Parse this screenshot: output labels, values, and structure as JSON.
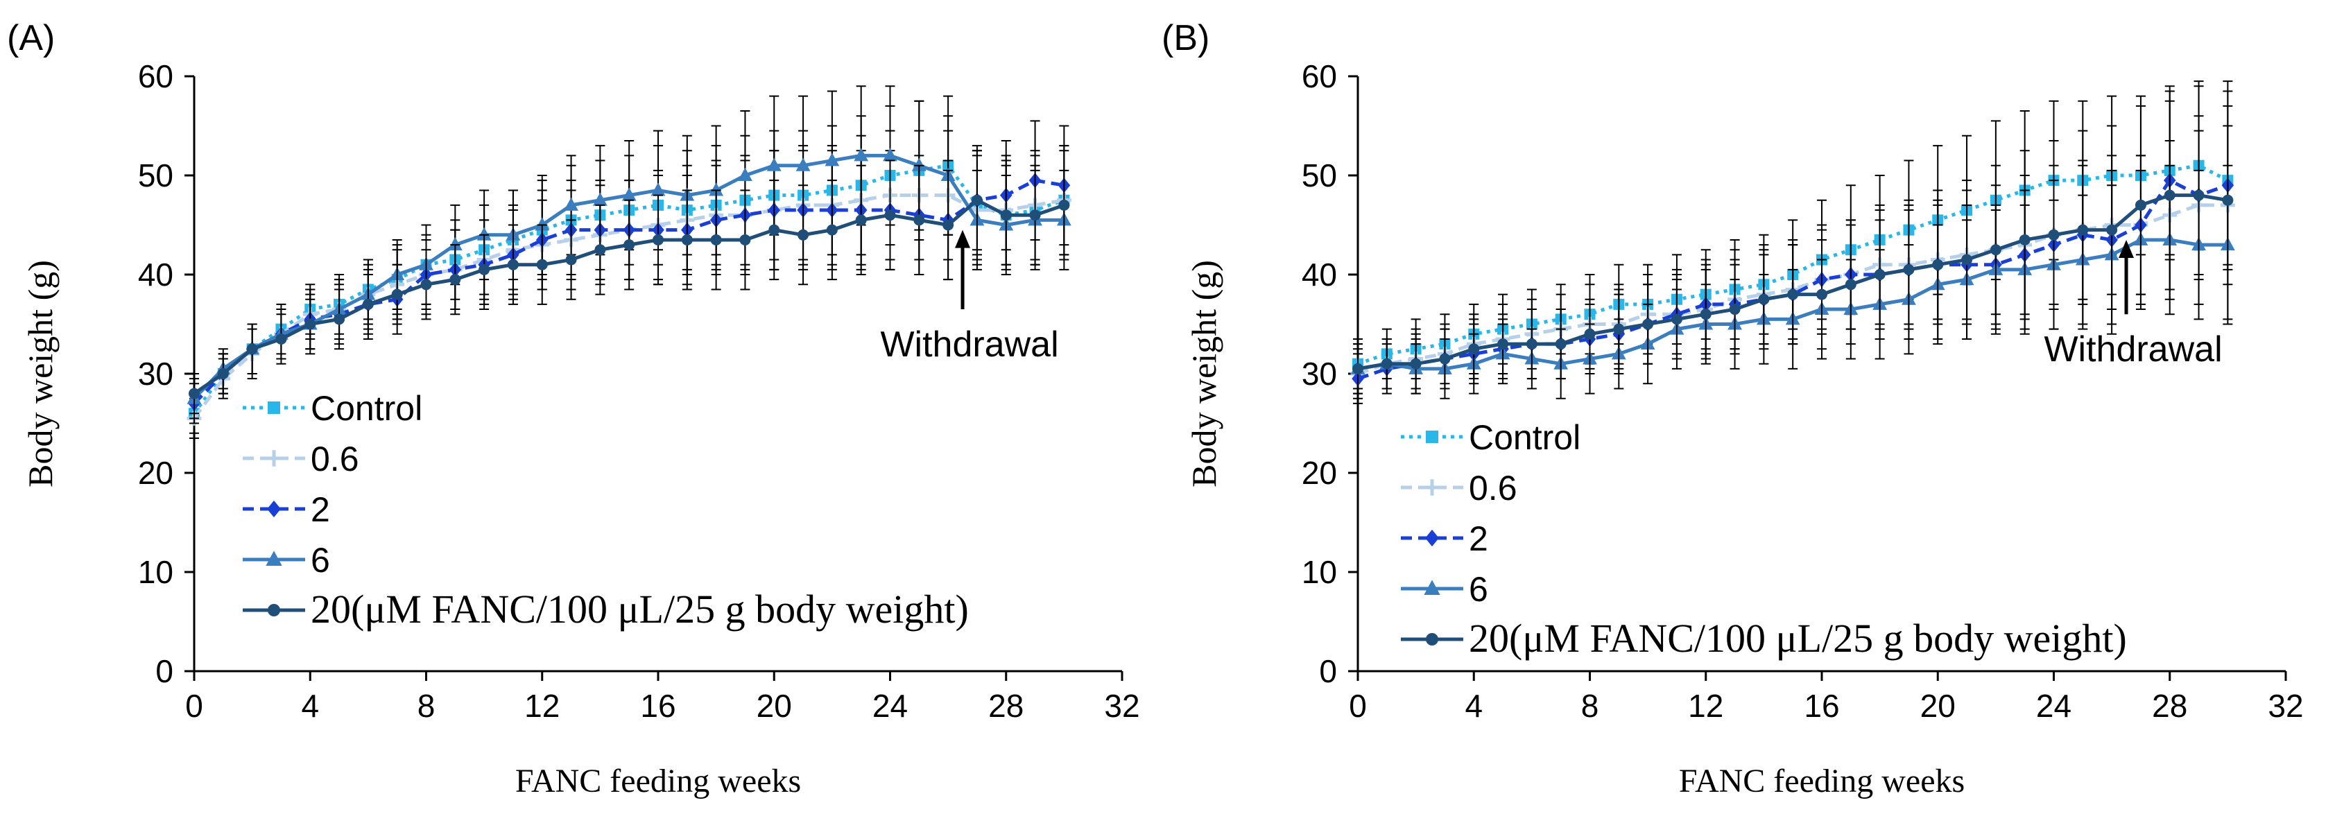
{
  "figure": {
    "panels": [
      "(A)",
      "(B)"
    ]
  },
  "chart_data": [
    {
      "type": "line",
      "panel_label": "(A)",
      "xlabel": "FANC feeding weeks",
      "ylabel": "Body weight (g)",
      "xlim": [
        0,
        32
      ],
      "ylim": [
        0,
        60
      ],
      "xticks": [
        0,
        4,
        8,
        12,
        16,
        20,
        24,
        28,
        32
      ],
      "yticks": [
        0,
        10,
        20,
        30,
        40,
        50,
        60
      ],
      "x": [
        0,
        1,
        2,
        3,
        4,
        5,
        6,
        7,
        8,
        9,
        10,
        11,
        12,
        13,
        14,
        15,
        16,
        17,
        18,
        19,
        20,
        21,
        22,
        23,
        24,
        25,
        26,
        27,
        28,
        29,
        30
      ],
      "annotation": {
        "text": "Withdrawal",
        "x": 26.5,
        "arrow_from_y": 36.5,
        "arrow_to_y": 44.5
      },
      "legend_suffix": "(μM FANC/100 μL/25 g body weight)",
      "legend_placement": "lower-left",
      "series": [
        {
          "name": "Control",
          "color": "#29b6e8",
          "style": "dotted",
          "marker": "square",
          "values": [
            26,
            30,
            32.5,
            34.5,
            36.5,
            37,
            38.5,
            39.5,
            41,
            41.5,
            42.5,
            43.5,
            44.5,
            45.5,
            46,
            46.5,
            47,
            46.5,
            47,
            47.5,
            48,
            48,
            48.5,
            49,
            50,
            50.5,
            51,
            47,
            46,
            46.5,
            47.5
          ],
          "errors": [
            2,
            2,
            2.5,
            2.5,
            2.5,
            3,
            3,
            3.5,
            4,
            4,
            4.5,
            5,
            5,
            5.5,
            5.5,
            5.5,
            6,
            6,
            6,
            6.5,
            6.5,
            6.5,
            6.5,
            7,
            7,
            7,
            7,
            5.5,
            5.5,
            5.5,
            5.5
          ]
        },
        {
          "name": "0.6",
          "color": "#b7d0ea",
          "style": "dashed",
          "marker": "plus",
          "values": [
            25.5,
            29.5,
            32,
            34,
            36,
            36.5,
            38,
            39,
            40,
            40.5,
            41.5,
            42.5,
            43,
            43.5,
            44,
            44.5,
            45,
            45.5,
            46,
            46,
            46.5,
            47,
            47,
            47.5,
            48,
            48,
            48,
            46.5,
            46.5,
            47,
            47.5
          ],
          "errors": [
            2,
            2,
            2.5,
            2.5,
            2.5,
            3,
            3,
            3.5,
            3.5,
            4,
            4,
            4.5,
            4.5,
            5,
            5,
            5,
            5.5,
            5.5,
            5.5,
            6,
            6,
            6,
            6,
            6.5,
            6.5,
            6.5,
            6.5,
            5.5,
            5.5,
            5.5,
            5.5
          ]
        },
        {
          "name": "2",
          "color": "#1a3fd6",
          "style": "dashed",
          "marker": "diamond",
          "values": [
            27,
            30,
            32.5,
            34,
            35.5,
            36,
            37,
            37.5,
            40,
            40.5,
            41,
            42,
            43.5,
            44.5,
            44.5,
            44.5,
            44.5,
            44.5,
            45.5,
            46,
            46.5,
            46.5,
            46.5,
            46.5,
            46.5,
            46,
            45.5,
            47.5,
            48,
            49.5,
            49
          ],
          "errors": [
            2,
            2,
            2.5,
            2.5,
            3,
            3,
            3.5,
            3.5,
            4,
            4,
            4.5,
            4.5,
            5,
            5,
            5,
            5,
            5.5,
            5.5,
            5.5,
            5.5,
            6,
            6,
            6,
            6,
            6,
            6,
            6,
            5.5,
            5.5,
            6,
            6
          ]
        },
        {
          "name": "6",
          "color": "#3a7ec0",
          "style": "solid",
          "marker": "triangle",
          "values": [
            27.5,
            30.5,
            32.5,
            34,
            35,
            36.5,
            38,
            40,
            41,
            43,
            44,
            44,
            45,
            47,
            47.5,
            48,
            48.5,
            48,
            48.5,
            50,
            51,
            51,
            51.5,
            52,
            52,
            51,
            50,
            45.5,
            45,
            45.5,
            45.5
          ],
          "errors": [
            2,
            2,
            2.5,
            2.5,
            3,
            3,
            3.5,
            3.5,
            4,
            4,
            4.5,
            4.5,
            5,
            5,
            5.5,
            5.5,
            6,
            6,
            6.5,
            6.5,
            7,
            7,
            7,
            7,
            7,
            6.5,
            6,
            5,
            5,
            5,
            5
          ]
        },
        {
          "name": "20",
          "color": "#1f4e79",
          "style": "solid",
          "marker": "circle",
          "values": [
            28,
            30,
            32.5,
            33.5,
            35,
            35.5,
            37,
            38,
            39,
            39.5,
            40.5,
            41,
            41,
            41.5,
            42.5,
            43,
            43.5,
            43.5,
            43.5,
            43.5,
            44.5,
            44,
            44.5,
            45.5,
            46,
            45.5,
            45,
            47.5,
            46,
            46,
            47
          ],
          "errors": [
            2,
            2,
            2.5,
            2.5,
            2.5,
            3,
            3,
            3,
            3.5,
            3.5,
            3.5,
            4,
            4,
            4,
            4.5,
            4.5,
            4.5,
            5,
            5,
            5,
            5,
            5,
            5,
            5.5,
            5.5,
            5.5,
            5.5,
            5,
            5,
            5,
            5.5
          ]
        }
      ]
    },
    {
      "type": "line",
      "panel_label": "(B)",
      "xlabel": "FANC feeding weeks",
      "ylabel": "Body weight (g)",
      "xlim": [
        0,
        32
      ],
      "ylim": [
        0,
        60
      ],
      "xticks": [
        0,
        4,
        8,
        12,
        16,
        20,
        24,
        28,
        32
      ],
      "yticks": [
        0,
        10,
        20,
        30,
        40,
        50,
        60
      ],
      "x": [
        0,
        1,
        2,
        3,
        4,
        5,
        6,
        7,
        8,
        9,
        10,
        11,
        12,
        13,
        14,
        15,
        16,
        17,
        18,
        19,
        20,
        21,
        22,
        23,
        24,
        25,
        26,
        27,
        28,
        29,
        30
      ],
      "annotation": {
        "text": "Withdrawal",
        "x": 26.5,
        "arrow_from_y": 36,
        "arrow_to_y": 43.5
      },
      "legend_suffix": "(μM FANC/100 μL/25 g body weight)",
      "legend_placement": "lower-left",
      "series": [
        {
          "name": "Control",
          "color": "#29b6e8",
          "style": "dotted",
          "marker": "square",
          "values": [
            31,
            32,
            32.5,
            33,
            34,
            34.5,
            35,
            35.5,
            36,
            37,
            37,
            37.5,
            38,
            38.5,
            39,
            40,
            41.5,
            42.5,
            43.5,
            44.5,
            45.5,
            46.5,
            47.5,
            48.5,
            49.5,
            49.5,
            50,
            50,
            50.5,
            51,
            49.5
          ],
          "errors": [
            2.5,
            2.5,
            3,
            3,
            3,
            3.5,
            3.5,
            3.5,
            4,
            4,
            4,
            4.5,
            4.5,
            5,
            5,
            5.5,
            6,
            6.5,
            6.5,
            7,
            7.5,
            7.5,
            8,
            8,
            8,
            8,
            8,
            8,
            8.5,
            8.5,
            9
          ]
        },
        {
          "name": "0.6",
          "color": "#b7d0ea",
          "style": "dashed",
          "marker": "plus",
          "values": [
            30,
            31,
            31.5,
            32,
            33,
            33.5,
            34,
            34.5,
            35,
            35,
            36,
            36,
            36.5,
            37.5,
            38,
            38.5,
            39.5,
            40,
            41,
            41,
            41.5,
            42,
            42.5,
            43,
            44,
            44.5,
            45,
            45,
            46,
            47,
            47
          ],
          "errors": [
            2.5,
            2.5,
            3,
            3,
            3,
            3.5,
            3.5,
            3.5,
            4,
            4,
            4,
            4.5,
            4.5,
            5,
            5,
            5,
            5.5,
            5.5,
            6,
            6,
            6,
            6.5,
            6.5,
            7,
            7,
            7,
            7,
            7,
            7.5,
            7.5,
            8
          ]
        },
        {
          "name": "2",
          "color": "#1a3fd6",
          "style": "dashed",
          "marker": "diamond",
          "values": [
            29.5,
            30.5,
            31,
            31.5,
            32,
            32.5,
            33,
            33,
            33.5,
            34,
            35,
            36,
            37,
            37,
            37.5,
            38,
            39.5,
            40,
            40,
            40.5,
            41,
            41,
            41,
            42,
            43,
            44,
            43.5,
            45,
            49.5,
            48,
            49
          ],
          "errors": [
            2.5,
            2.5,
            3,
            3,
            3,
            3,
            3.5,
            3.5,
            3.5,
            4,
            4,
            4,
            4.5,
            4.5,
            4.5,
            5,
            5,
            5.5,
            5.5,
            6,
            6,
            6,
            6,
            6.5,
            6.5,
            7,
            7,
            7,
            8,
            8,
            8
          ]
        },
        {
          "name": "6",
          "color": "#3a7ec0",
          "style": "solid",
          "marker": "triangle",
          "values": [
            30.5,
            31,
            30.5,
            30.5,
            31,
            32,
            31.5,
            31,
            31.5,
            32,
            33,
            34.5,
            35,
            35,
            35.5,
            35.5,
            36.5,
            36.5,
            37,
            37.5,
            39,
            39.5,
            40.5,
            40.5,
            41,
            41.5,
            42,
            43.5,
            43.5,
            43,
            43
          ],
          "errors": [
            2.5,
            2.5,
            2.5,
            3,
            3,
            3,
            3,
            3.5,
            3.5,
            3.5,
            4,
            4,
            4,
            4.5,
            4.5,
            5,
            5,
            5,
            5.5,
            5.5,
            6,
            6,
            6,
            6.5,
            6.5,
            6.5,
            7,
            7,
            7.5,
            7.5,
            8
          ]
        },
        {
          "name": "20",
          "color": "#1f4e79",
          "style": "solid",
          "marker": "circle",
          "values": [
            30.5,
            31,
            31,
            31.5,
            32.5,
            33,
            33,
            33,
            34,
            34.5,
            35,
            35.5,
            36,
            36.5,
            37.5,
            38,
            38,
            39,
            40,
            40.5,
            41,
            41.5,
            42.5,
            43.5,
            44,
            44.5,
            44.5,
            47,
            48,
            48,
            47.5
          ],
          "errors": [
            2.5,
            2.5,
            2.5,
            3,
            3,
            3,
            3.5,
            3.5,
            3.5,
            4,
            4,
            4,
            4.5,
            4.5,
            5,
            5,
            5.5,
            6,
            6.5,
            7,
            7.5,
            8,
            8.5,
            9,
            9.5,
            10,
            10.5,
            10,
            10.5,
            11,
            12
          ]
        }
      ]
    }
  ]
}
